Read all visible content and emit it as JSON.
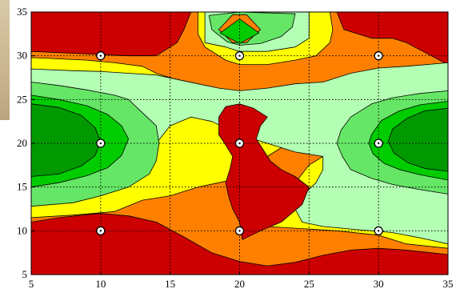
{
  "chart_data": {
    "type": "contour",
    "title": "",
    "xlabel": "",
    "ylabel": "",
    "xlim": [
      5,
      35
    ],
    "ylim": [
      5,
      35
    ],
    "x_ticks": [
      "5",
      "10",
      "15",
      "20",
      "25",
      "30",
      "35"
    ],
    "y_ticks": [
      "5",
      "10",
      "15",
      "20",
      "25",
      "30",
      "35"
    ],
    "grid": true,
    "grid_style": "dotted",
    "level_colors": [
      "#cc0000",
      "#ff8000",
      "#ffff00",
      "#b3ffb3",
      "#66e666",
      "#00cc00",
      "#009900",
      "#006600"
    ],
    "design_points": [
      {
        "x": 10,
        "y": 10
      },
      {
        "x": 10,
        "y": 20
      },
      {
        "x": 10,
        "y": 30
      },
      {
        "x": 20,
        "y": 10
      },
      {
        "x": 20,
        "y": 20
      },
      {
        "x": 20,
        "y": 30
      },
      {
        "x": 30,
        "y": 10
      },
      {
        "x": 30,
        "y": 20
      },
      {
        "x": 30,
        "y": 30
      }
    ],
    "contour_regions": [
      {
        "level": 0,
        "polygon": [
          [
            5,
            5
          ],
          [
            35,
            5
          ],
          [
            35,
            35
          ],
          [
            5,
            35
          ]
        ]
      },
      {
        "level": 1,
        "polygon": [
          [
            5,
            11
          ],
          [
            7,
            11.5
          ],
          [
            10,
            12
          ],
          [
            12,
            11.7
          ],
          [
            14,
            11
          ],
          [
            16,
            9.3
          ],
          [
            18,
            7.5
          ],
          [
            20,
            6.5
          ],
          [
            22,
            6
          ],
          [
            24,
            6.4
          ],
          [
            26,
            7.2
          ],
          [
            28,
            7.8
          ],
          [
            30,
            8
          ],
          [
            32,
            7.8
          ],
          [
            35,
            7.3
          ],
          [
            35,
            29
          ],
          [
            32,
            31.5
          ],
          [
            31,
            32
          ],
          [
            29.5,
            32
          ],
          [
            27.5,
            33
          ],
          [
            27,
            35
          ],
          [
            16.5,
            35
          ],
          [
            16,
            33
          ],
          [
            15.5,
            31.5
          ],
          [
            14,
            30
          ],
          [
            12,
            30
          ],
          [
            5,
            30.5
          ]
        ]
      },
      {
        "level": 2,
        "polygon": [
          [
            5,
            11.5
          ],
          [
            8,
            11.8
          ],
          [
            11,
            12.2
          ],
          [
            13,
            13.5
          ],
          [
            15,
            14
          ],
          [
            16,
            14.5
          ],
          [
            17,
            15
          ],
          [
            18.5,
            15.5
          ],
          [
            20,
            16
          ],
          [
            21,
            17
          ],
          [
            22,
            18.5
          ],
          [
            23,
            19.5
          ],
          [
            23.5,
            21
          ],
          [
            24,
            22.5
          ],
          [
            23.5,
            23
          ],
          [
            23,
            24
          ],
          [
            22,
            24.5
          ],
          [
            21,
            24.7
          ],
          [
            20,
            24.8
          ],
          [
            19,
            25.3
          ],
          [
            18,
            25.8
          ],
          [
            17,
            26.5
          ],
          [
            16,
            27
          ],
          [
            15,
            27.5
          ],
          [
            14,
            28
          ],
          [
            13,
            28.8
          ],
          [
            11,
            29.2
          ],
          [
            9,
            29.5
          ],
          [
            5,
            29.8
          ]
        ]
      },
      {
        "level": 2,
        "polygon": [
          [
            35,
            8
          ],
          [
            32,
            8.5
          ],
          [
            30,
            9.5
          ],
          [
            27,
            10
          ],
          [
            24,
            10.3
          ],
          [
            22,
            10.5
          ],
          [
            21,
            11
          ],
          [
            21.5,
            12
          ],
          [
            23,
            13.5
          ],
          [
            24,
            15.5
          ],
          [
            25,
            17.5
          ],
          [
            26,
            18.5
          ],
          [
            27,
            19
          ],
          [
            28,
            20
          ],
          [
            30,
            21
          ],
          [
            33,
            22.5
          ],
          [
            35,
            23.5
          ]
        ]
      },
      {
        "level": 2,
        "polygon": [
          [
            17,
            35
          ],
          [
            17,
            32.5
          ],
          [
            17.5,
            31
          ],
          [
            19,
            29.5
          ],
          [
            20,
            29
          ],
          [
            22,
            29
          ],
          [
            24,
            29.5
          ],
          [
            25.5,
            30
          ],
          [
            26.5,
            31.5
          ],
          [
            26.7,
            33
          ],
          [
            26.5,
            35
          ]
        ]
      },
      {
        "level": 3,
        "polygon": [
          [
            5,
            28.5
          ],
          [
            8,
            28.3
          ],
          [
            10,
            28.2
          ],
          [
            12,
            28
          ],
          [
            14,
            27.8
          ],
          [
            15.5,
            27.3
          ],
          [
            17,
            26.8
          ],
          [
            18.5,
            26.3
          ],
          [
            20,
            26
          ],
          [
            22,
            26.3
          ],
          [
            24,
            26.8
          ],
          [
            26,
            27
          ],
          [
            28,
            28
          ],
          [
            30,
            28.6
          ],
          [
            32,
            28.8
          ],
          [
            35,
            29.2
          ],
          [
            35,
            8.5
          ],
          [
            33,
            9.2
          ],
          [
            31,
            9.8
          ],
          [
            28,
            10.2
          ],
          [
            26,
            10.5
          ],
          [
            24.5,
            11
          ],
          [
            24,
            12.5
          ],
          [
            24.5,
            14
          ],
          [
            25.5,
            15.5
          ],
          [
            26,
            17
          ],
          [
            26,
            18.5
          ],
          [
            24,
            19
          ],
          [
            22,
            20
          ],
          [
            20,
            21
          ],
          [
            18,
            22.5
          ],
          [
            16.5,
            23
          ],
          [
            15,
            22
          ],
          [
            14,
            20
          ],
          [
            12.5,
            18
          ],
          [
            11,
            17
          ],
          [
            9,
            16
          ],
          [
            7,
            15
          ],
          [
            5,
            14
          ]
        ]
      },
      {
        "level": 3,
        "polygon": [
          [
            17.5,
            35
          ],
          [
            17.5,
            31.5
          ],
          [
            19,
            31
          ],
          [
            20,
            30.5
          ],
          [
            22,
            30.5
          ],
          [
            24,
            31
          ],
          [
            25,
            32
          ],
          [
            25,
            35
          ]
        ]
      },
      {
        "level": 4,
        "polygon": [
          [
            5,
            27
          ],
          [
            7,
            26.6
          ],
          [
            9,
            26.1
          ],
          [
            11,
            25.5
          ],
          [
            12,
            25
          ],
          [
            13,
            23.5
          ],
          [
            14,
            22
          ],
          [
            14.2,
            20
          ],
          [
            14,
            18
          ],
          [
            13.5,
            16.5
          ],
          [
            12,
            15
          ],
          [
            10,
            14
          ],
          [
            8,
            13.2
          ],
          [
            5,
            12.8
          ]
        ]
      },
      {
        "level": 4,
        "polygon": [
          [
            35,
            26
          ],
          [
            33,
            25.7
          ],
          [
            31,
            25.2
          ],
          [
            29.5,
            24.5
          ],
          [
            28,
            23
          ],
          [
            27.3,
            21.5
          ],
          [
            27,
            20
          ],
          [
            27.4,
            18.5
          ],
          [
            28,
            17
          ],
          [
            29.5,
            16
          ],
          [
            31,
            15.3
          ],
          [
            33,
            14.7
          ],
          [
            35,
            14.2
          ]
        ]
      },
      {
        "level": 4,
        "polygon": [
          [
            17.8,
            34.6
          ],
          [
            18,
            33
          ],
          [
            19.1,
            31.6
          ],
          [
            20,
            31.2
          ],
          [
            21.5,
            31.4
          ],
          [
            23,
            32.2
          ],
          [
            23.8,
            33.3
          ],
          [
            24,
            34.8
          ],
          [
            20,
            35
          ]
        ]
      },
      {
        "level": 5,
        "polygon": [
          [
            5,
            25.5
          ],
          [
            7,
            25
          ],
          [
            9,
            24.3
          ],
          [
            10.5,
            23.3
          ],
          [
            11.5,
            22
          ],
          [
            12,
            20.5
          ],
          [
            11.5,
            18.6
          ],
          [
            10.5,
            17.2
          ],
          [
            9,
            16.3
          ],
          [
            7,
            15.5
          ],
          [
            5,
            15
          ]
        ]
      },
      {
        "level": 5,
        "polygon": [
          [
            35,
            24.8
          ],
          [
            33,
            24.4
          ],
          [
            31.5,
            23.7
          ],
          [
            30.2,
            22.6
          ],
          [
            29.5,
            21
          ],
          [
            29.3,
            20
          ],
          [
            29.6,
            18.8
          ],
          [
            30.4,
            17.7
          ],
          [
            31.5,
            17
          ],
          [
            33,
            16.4
          ],
          [
            35,
            15.8
          ]
        ]
      },
      {
        "level": 6,
        "polygon": [
          [
            5,
            24.5
          ],
          [
            7,
            24.1
          ],
          [
            8.6,
            23.2
          ],
          [
            9.6,
            21.8
          ],
          [
            10,
            20.2
          ],
          [
            9.6,
            18.6
          ],
          [
            8.6,
            17.4
          ],
          [
            7,
            16.5
          ],
          [
            5,
            16.2
          ]
        ]
      },
      {
        "level": 6,
        "polygon": [
          [
            35,
            24
          ],
          [
            33.3,
            23.7
          ],
          [
            32,
            22.8
          ],
          [
            31,
            21.6
          ],
          [
            30.7,
            20.2
          ],
          [
            31.1,
            18.9
          ],
          [
            32.1,
            17.8
          ],
          [
            33.4,
            17.1
          ],
          [
            35,
            16.8
          ]
        ]
      },
      {
        "level": 1,
        "polygon": [
          [
            18.5,
            33
          ],
          [
            19.5,
            31.5
          ],
          [
            20.5,
            31.5
          ],
          [
            21.5,
            33
          ],
          [
            20.5,
            34.7
          ],
          [
            19.5,
            34.7
          ]
        ]
      },
      {
        "level": 5,
        "polygon": [
          [
            18.6,
            32.6
          ],
          [
            20,
            31.4
          ],
          [
            21.4,
            32.6
          ],
          [
            20,
            34.2
          ]
        ]
      },
      {
        "level": 0,
        "polygon": [
          [
            20.2,
            9
          ],
          [
            21.5,
            10
          ],
          [
            23,
            11
          ],
          [
            24.5,
            13
          ],
          [
            25,
            15
          ],
          [
            24,
            16.2
          ],
          [
            23,
            17
          ],
          [
            22.2,
            18
          ],
          [
            21.8,
            19
          ],
          [
            21.2,
            20.5
          ],
          [
            21.5,
            22
          ],
          [
            22,
            23
          ],
          [
            21,
            24
          ],
          [
            20,
            24.5
          ],
          [
            19,
            24.2
          ],
          [
            18.5,
            23
          ],
          [
            18.5,
            21
          ],
          [
            19,
            19.8
          ],
          [
            19.5,
            18.5
          ],
          [
            19.3,
            17
          ],
          [
            19,
            15.5
          ],
          [
            19.2,
            14
          ],
          [
            19.5,
            12.5
          ],
          [
            20,
            11
          ]
        ]
      }
    ]
  }
}
